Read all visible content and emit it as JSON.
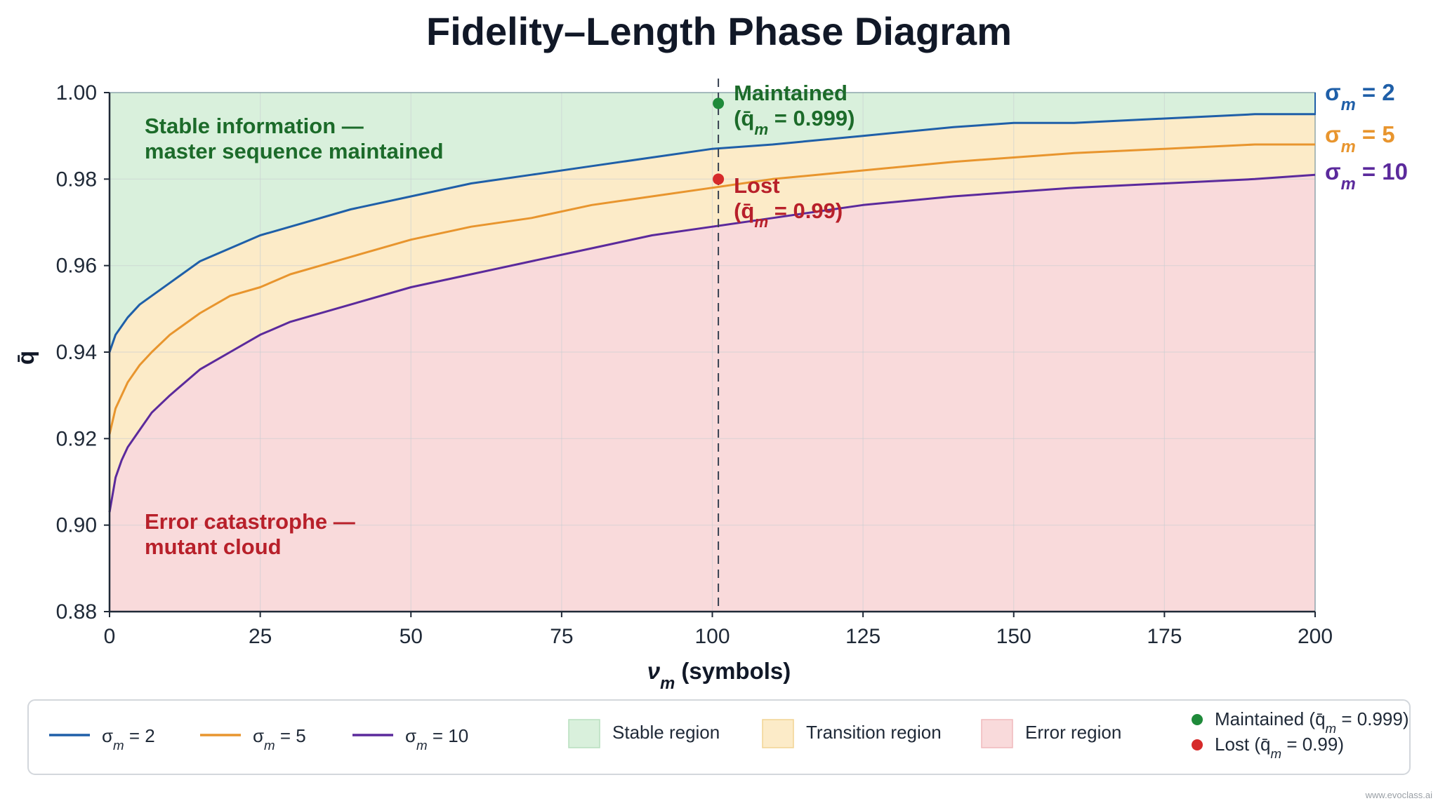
{
  "chart_data": {
    "type": "line",
    "title": "Fidelity–Length Phase Diagram",
    "xlabel_main": "ν",
    "xlabel_sub": "m",
    "xlabel_suffix": " (symbols)",
    "ylabel": "q̄",
    "xlim": [
      0,
      200
    ],
    "ylim": [
      0.88,
      1.0
    ],
    "x_ticks": [
      "0",
      "25",
      "50",
      "75",
      "100",
      "125",
      "150",
      "175",
      "200"
    ],
    "y_ticks": [
      "0.88",
      "0.90",
      "0.92",
      "0.94",
      "0.96",
      "0.98",
      "1.00"
    ],
    "grid": true,
    "x": [
      0,
      1,
      2,
      3,
      5,
      7,
      10,
      15,
      20,
      25,
      30,
      40,
      50,
      60,
      70,
      80,
      90,
      100,
      110,
      125,
      140,
      150,
      160,
      175,
      190,
      200
    ],
    "series": [
      {
        "name": "σm = 2",
        "label_main": "σ",
        "label_sub": "m",
        "label_suffix": " = 2",
        "color": "#1f5fa8",
        "values": [
          0.94,
          0.944,
          0.946,
          0.948,
          0.951,
          0.953,
          0.956,
          0.961,
          0.964,
          0.967,
          0.969,
          0.973,
          0.976,
          0.979,
          0.981,
          0.983,
          0.985,
          0.987,
          0.988,
          0.99,
          0.992,
          0.993,
          0.993,
          0.994,
          0.995,
          0.995
        ]
      },
      {
        "name": "σm = 5",
        "label_main": "σ",
        "label_sub": "m",
        "label_suffix": " = 5",
        "color": "#e8952e",
        "values": [
          0.921,
          0.927,
          0.93,
          0.933,
          0.937,
          0.94,
          0.944,
          0.949,
          0.953,
          0.955,
          0.958,
          0.962,
          0.966,
          0.969,
          0.971,
          0.974,
          0.976,
          0.978,
          0.98,
          0.982,
          0.984,
          0.985,
          0.986,
          0.987,
          0.988,
          0.988
        ]
      },
      {
        "name": "σm = 10",
        "label_main": "σ",
        "label_sub": "m",
        "label_suffix": " = 10",
        "color": "#5b2a9c",
        "values": [
          0.903,
          0.911,
          0.915,
          0.918,
          0.922,
          0.926,
          0.93,
          0.936,
          0.94,
          0.944,
          0.947,
          0.951,
          0.955,
          0.958,
          0.961,
          0.964,
          0.967,
          0.969,
          0.971,
          0.974,
          0.976,
          0.977,
          0.978,
          0.979,
          0.98,
          0.981
        ]
      }
    ],
    "regions": [
      {
        "name": "Stable region",
        "color": "#d9f0dc",
        "stroke": "#b7dfbe"
      },
      {
        "name": "Transition region",
        "color": "#fcebc8",
        "stroke": "#f2d493"
      },
      {
        "name": "Error region",
        "color": "#f9dadb",
        "stroke": "#f0b9bc"
      }
    ],
    "region_labels": {
      "stable": [
        "Stable information —",
        "master sequence maintained"
      ],
      "stable_color": "#1c6b2a",
      "error": [
        "Error catastrophe —",
        "mutant cloud"
      ],
      "error_color": "#b8202a"
    },
    "reference_line": {
      "x": 101
    },
    "annotations": [
      {
        "label": "Maintained",
        "x": 101,
        "y": 0.9975,
        "color": "#1f8a3a",
        "text_color": "#1c6b2a",
        "detail_main": "(q̄",
        "detail_sub": "m",
        "detail_suffix": " = 0.999)"
      },
      {
        "label": "Lost",
        "x": 101,
        "y": 0.98,
        "color": "#d62a2a",
        "text_color": "#b8202a",
        "detail_main": "(q̄",
        "detail_sub": "m",
        "detail_suffix": " = 0.99)"
      }
    ],
    "legend": {
      "placement": "bottom",
      "points": [
        {
          "main": "Maintained (q̄",
          "sub": "m",
          "suffix": " = 0.999)",
          "color": "#1f8a3a"
        },
        {
          "main": "Lost (q̄",
          "sub": "m",
          "suffix": " = 0.99)",
          "color": "#d62a2a"
        }
      ]
    }
  },
  "watermark": "www.evoclass.ai"
}
